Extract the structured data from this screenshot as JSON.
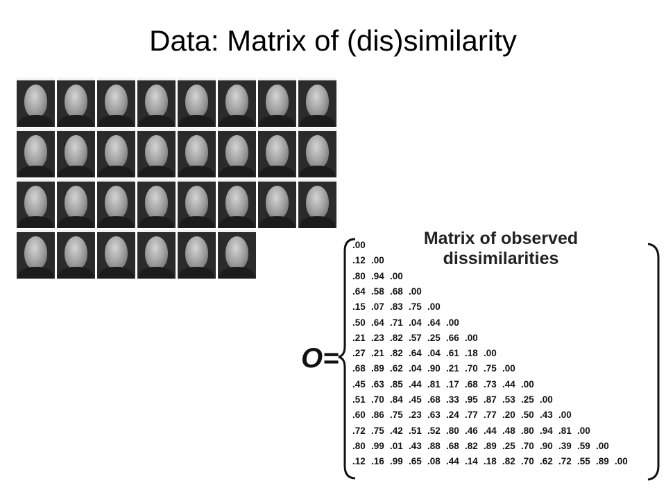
{
  "slide": {
    "title": "Data: Matrix of (dis)similarity"
  },
  "faces": {
    "rows": [
      8,
      8,
      8,
      6
    ]
  },
  "matrix": {
    "title_line1": "Matrix of observed",
    "title_line2": "dissimilarities",
    "label": "O=",
    "rows": [
      [
        ".00"
      ],
      [
        ".12",
        ".00"
      ],
      [
        ".80",
        ".94",
        ".00"
      ],
      [
        ".64",
        ".58",
        ".68",
        ".00"
      ],
      [
        ".15",
        ".07",
        ".83",
        ".75",
        ".00"
      ],
      [
        ".50",
        ".64",
        ".71",
        ".04",
        ".64",
        ".00"
      ],
      [
        ".21",
        ".23",
        ".82",
        ".57",
        ".25",
        ".66",
        ".00"
      ],
      [
        ".27",
        ".21",
        ".82",
        ".64",
        ".04",
        ".61",
        ".18",
        ".00"
      ],
      [
        ".68",
        ".89",
        ".62",
        ".04",
        ".90",
        ".21",
        ".70",
        ".75",
        ".00"
      ],
      [
        ".45",
        ".63",
        ".85",
        ".44",
        ".81",
        ".17",
        ".68",
        ".73",
        ".44",
        ".00"
      ],
      [
        ".51",
        ".70",
        ".84",
        ".45",
        ".68",
        ".33",
        ".95",
        ".87",
        ".53",
        ".25",
        ".00"
      ],
      [
        ".60",
        ".86",
        ".75",
        ".23",
        ".63",
        ".24",
        ".77",
        ".77",
        ".20",
        ".50",
        ".43",
        ".00"
      ],
      [
        ".72",
        ".75",
        ".42",
        ".51",
        ".52",
        ".80",
        ".46",
        ".44",
        ".48",
        ".80",
        ".94",
        ".81",
        ".00"
      ],
      [
        ".80",
        ".99",
        ".01",
        ".43",
        ".88",
        ".68",
        ".82",
        ".89",
        ".25",
        ".70",
        ".90",
        ".39",
        ".59",
        ".00"
      ],
      [
        ".12",
        ".16",
        ".99",
        ".65",
        ".08",
        ".44",
        ".14",
        ".18",
        ".82",
        ".70",
        ".62",
        ".72",
        ".55",
        ".89",
        ".00"
      ]
    ]
  }
}
